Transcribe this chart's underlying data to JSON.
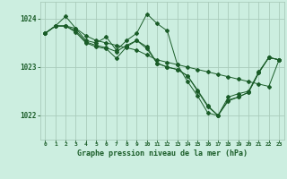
{
  "title": "Graphe pression niveau de la mer (hPa)",
  "background_color": "#cceee0",
  "grid_color": "#aaccbb",
  "line_color": "#1a5c28",
  "ylim": [
    1021.5,
    1024.35
  ],
  "xlim": [
    -0.5,
    23.5
  ],
  "yticks": [
    1022,
    1023,
    1024
  ],
  "xticks": [
    0,
    1,
    2,
    3,
    4,
    5,
    6,
    7,
    8,
    9,
    10,
    11,
    12,
    13,
    14,
    15,
    16,
    17,
    18,
    19,
    20,
    21,
    22,
    23
  ],
  "series": [
    [
      1023.7,
      1023.85,
      1023.85,
      1023.8,
      1023.65,
      1023.55,
      1023.5,
      1023.45,
      1023.4,
      1023.35,
      1023.25,
      1023.15,
      1023.1,
      1023.05,
      1023.0,
      1022.95,
      1022.9,
      1022.85,
      1022.8,
      1022.75,
      1022.7,
      1022.65,
      1022.6,
      1023.15
    ],
    [
      1023.7,
      1023.85,
      1024.05,
      1023.8,
      1023.55,
      1023.5,
      1023.62,
      1023.35,
      1023.55,
      1023.7,
      1024.1,
      1023.9,
      1023.75,
      1023.05,
      1022.7,
      1022.4,
      1022.05,
      1022.0,
      1022.38,
      1022.45,
      1022.5,
      1022.9,
      1023.2,
      1023.15
    ],
    [
      1023.7,
      1023.85,
      1023.85,
      1023.72,
      1023.5,
      1023.42,
      1023.38,
      1023.18,
      1023.42,
      1023.55,
      1023.42,
      1023.08,
      1023.0,
      1022.95,
      1022.82,
      1022.5,
      1022.18,
      1022.0,
      1022.32,
      1022.38,
      1022.48,
      1022.88,
      1023.2,
      1023.15
    ],
    [
      1023.7,
      1023.85,
      1023.85,
      1023.75,
      1023.52,
      1023.45,
      1023.4,
      1023.32,
      1023.45,
      1023.55,
      1023.38,
      1023.08,
      1023.0,
      1022.95,
      1022.82,
      1022.52,
      1022.2,
      1022.0,
      1022.3,
      1022.38,
      1022.48,
      1022.88,
      1023.2,
      1023.15
    ]
  ]
}
